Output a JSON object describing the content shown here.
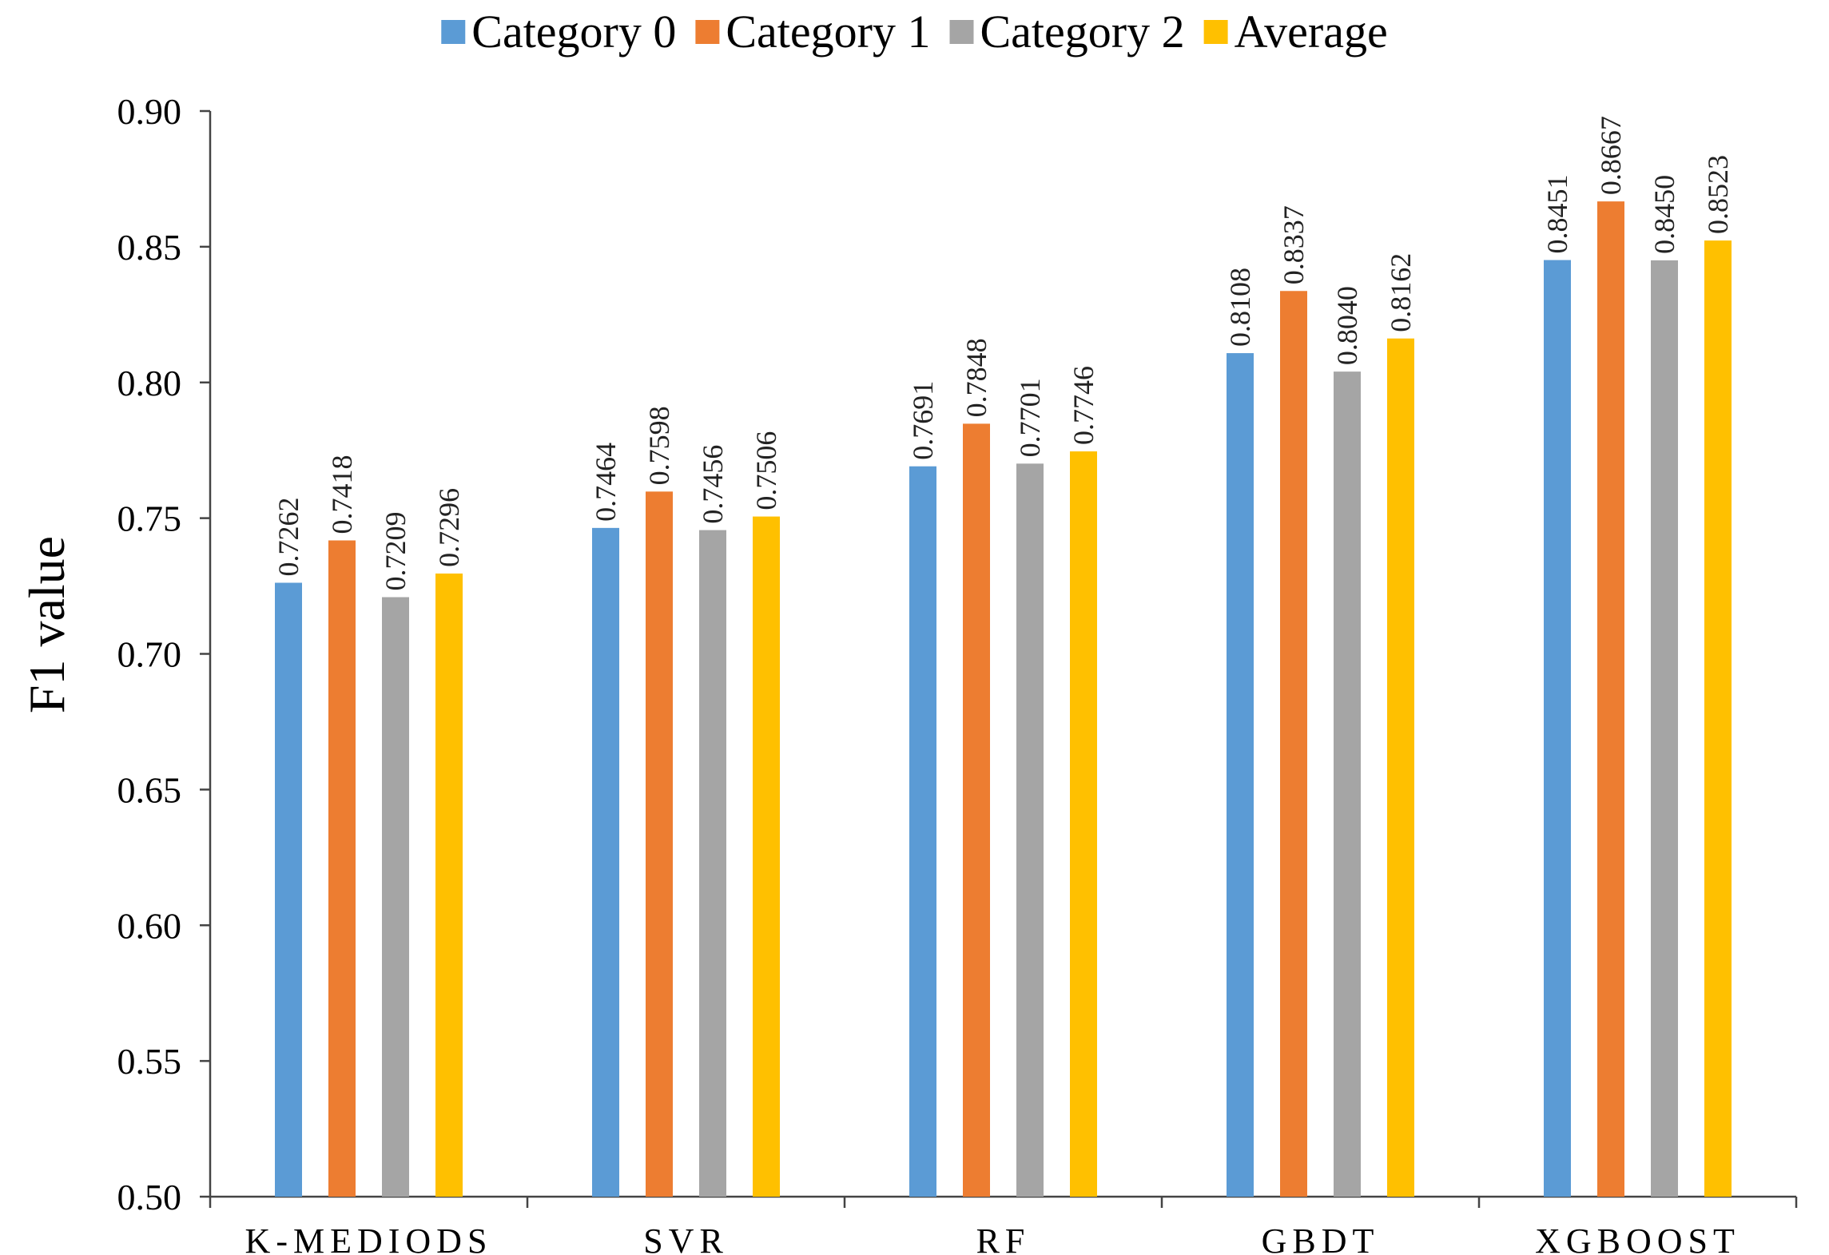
{
  "chart_data": {
    "type": "bar",
    "title": "",
    "xlabel": "",
    "ylabel": "F1 value",
    "ylim": [
      0.5,
      0.9
    ],
    "yticks": [
      "0.50",
      "0.55",
      "0.60",
      "0.65",
      "0.70",
      "0.75",
      "0.80",
      "0.85",
      "0.90"
    ],
    "grid": false,
    "legend": "top-center",
    "categories": [
      "K-MEDIODS",
      "SVR",
      "RF",
      "GBDT",
      "XGBOOST"
    ],
    "series": [
      {
        "name": "Category 0",
        "color": "#5b9bd5",
        "values": [
          0.7262,
          0.7464,
          0.7691,
          0.8108,
          0.8451
        ],
        "labels": [
          "0.7262",
          "0.7464",
          "0.7691",
          "0.8108",
          "0.8451"
        ]
      },
      {
        "name": "Category 1",
        "color": "#ed7d31",
        "values": [
          0.7418,
          0.7598,
          0.7848,
          0.8337,
          0.8667
        ],
        "labels": [
          "0.7418",
          "0.7598",
          "0.7848",
          "0.8337",
          "0.8667"
        ]
      },
      {
        "name": "Category 2",
        "color": "#a5a5a5",
        "values": [
          0.7209,
          0.7456,
          0.7701,
          0.804,
          0.845
        ],
        "labels": [
          "0.7209",
          "0.7456",
          "0.7701",
          "0.8040",
          "0.8450"
        ]
      },
      {
        "name": "Average",
        "color": "#ffc000",
        "values": [
          0.7296,
          0.7506,
          0.7746,
          0.8162,
          0.8523
        ],
        "labels": [
          "0.7296",
          "0.7506",
          "0.7746",
          "0.8162",
          "0.8523"
        ]
      }
    ]
  }
}
